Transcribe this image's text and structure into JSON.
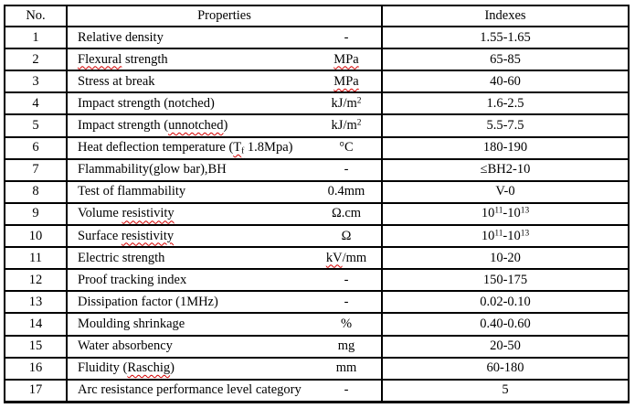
{
  "page": {
    "background": "#ffffff",
    "border_color": "#000000",
    "squiggle_color": "#d40000",
    "text_color": "#000000"
  },
  "table": {
    "headers": {
      "no": "No.",
      "properties": "Properties",
      "indexes": "Indexes"
    },
    "rows": [
      {
        "no": "1",
        "property": [
          {
            "t": "Relative density"
          }
        ],
        "unit": [
          {
            "t": "-"
          }
        ],
        "index": [
          {
            "t": "1.55-1.65"
          }
        ]
      },
      {
        "no": "2",
        "property": [
          {
            "t": "Flexural",
            "sq": true
          },
          {
            "t": " strength"
          }
        ],
        "unit": [
          {
            "t": "MPa",
            "sq": true
          }
        ],
        "index": [
          {
            "t": "65-85"
          }
        ]
      },
      {
        "no": "3",
        "property": [
          {
            "t": "Stress at break"
          }
        ],
        "unit": [
          {
            "t": "MPa",
            "sq": true
          }
        ],
        "index": [
          {
            "t": "40-60"
          }
        ]
      },
      {
        "no": "4",
        "property": [
          {
            "t": "Impact strength (notched)"
          }
        ],
        "unit": [
          {
            "t": "kJ/m"
          },
          {
            "t": "2",
            "sup": true
          }
        ],
        "index": [
          {
            "t": "1.6-2.5"
          }
        ]
      },
      {
        "no": "5",
        "property": [
          {
            "t": "Impact strength ("
          },
          {
            "t": "unnotched",
            "sq": true
          },
          {
            "t": ")"
          }
        ],
        "unit": [
          {
            "t": "kJ/m"
          },
          {
            "t": "2",
            "sup": true
          }
        ],
        "index": [
          {
            "t": "5.5-7.5"
          }
        ]
      },
      {
        "no": "6",
        "property": [
          {
            "t": "Heat deflection temperature ("
          },
          {
            "t": "T",
            "sq": true
          },
          {
            "t": "f",
            "sub": true,
            "sq": true
          },
          {
            "t": " 1.8Mpa)"
          }
        ],
        "unit": [
          {
            "t": "°C"
          }
        ],
        "index": [
          {
            "t": "180-190"
          }
        ]
      },
      {
        "no": "7",
        "property": [
          {
            "t": "Flammability(glow bar),BH"
          }
        ],
        "unit": [
          {
            "t": "-"
          }
        ],
        "index": [
          {
            "t": "≤BH2-10"
          }
        ]
      },
      {
        "no": "8",
        "property": [
          {
            "t": "Test of flammability"
          }
        ],
        "unit": [
          {
            "t": "0.4mm"
          }
        ],
        "index": [
          {
            "t": "V-0"
          }
        ]
      },
      {
        "no": "9",
        "property": [
          {
            "t": "Volume "
          },
          {
            "t": "resistivity",
            "sq": true
          }
        ],
        "unit": [
          {
            "t": "Ω.cm"
          }
        ],
        "index": [
          {
            "t": "10"
          },
          {
            "t": "11",
            "sup": true
          },
          {
            "t": "-10"
          },
          {
            "t": "13",
            "sup": true
          }
        ]
      },
      {
        "no": "10",
        "property": [
          {
            "t": "Surface "
          },
          {
            "t": "resistivity",
            "sq": true
          }
        ],
        "unit": [
          {
            "t": "Ω"
          }
        ],
        "index": [
          {
            "t": "10"
          },
          {
            "t": "11",
            "sup": true
          },
          {
            "t": "-10"
          },
          {
            "t": "13",
            "sup": true
          }
        ]
      },
      {
        "no": "11",
        "property": [
          {
            "t": "Electric strength"
          }
        ],
        "unit": [
          {
            "t": "kV",
            "sq": true
          },
          {
            "t": "/mm"
          }
        ],
        "index": [
          {
            "t": "10-20"
          }
        ]
      },
      {
        "no": "12",
        "property": [
          {
            "t": "Proof tracking index"
          }
        ],
        "unit": [
          {
            "t": "-"
          }
        ],
        "index": [
          {
            "t": "150-175"
          }
        ]
      },
      {
        "no": "13",
        "property": [
          {
            "t": "Dissipation factor (1MHz)"
          }
        ],
        "unit": [
          {
            "t": "-"
          }
        ],
        "index": [
          {
            "t": "0.02-0.10"
          }
        ]
      },
      {
        "no": "14",
        "property": [
          {
            "t": "Moulding shrinkage"
          }
        ],
        "unit": [
          {
            "t": "%"
          }
        ],
        "index": [
          {
            "t": "0.40-0.60"
          }
        ]
      },
      {
        "no": "15",
        "property": [
          {
            "t": "Water absorbency"
          }
        ],
        "unit": [
          {
            "t": "mg"
          }
        ],
        "index": [
          {
            "t": "20-50"
          }
        ]
      },
      {
        "no": "16",
        "property": [
          {
            "t": "Fluidity ("
          },
          {
            "t": "Raschig",
            "sq": true
          },
          {
            "t": ")"
          }
        ],
        "unit": [
          {
            "t": "mm"
          }
        ],
        "index": [
          {
            "t": "60-180"
          }
        ]
      },
      {
        "no": "17",
        "property": [
          {
            "t": "Arc resistance performance level category"
          }
        ],
        "unit": [
          {
            "t": "-"
          }
        ],
        "index": [
          {
            "t": "5"
          }
        ]
      }
    ]
  }
}
